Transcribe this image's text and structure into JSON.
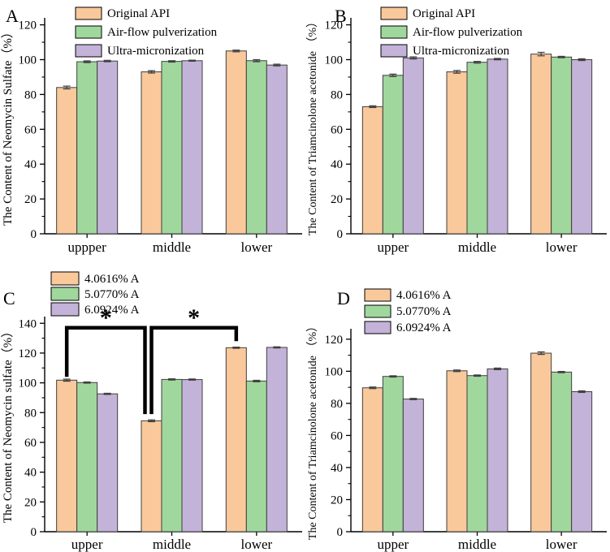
{
  "figure": {
    "panel_labels": [
      "A",
      "B",
      "C",
      "D"
    ],
    "colors": {
      "series_fills": [
        "#F9C89B",
        "#A0D79D",
        "#C3B3D8"
      ],
      "bar_edge": "#3f3f3f",
      "error_bar": "#3f3f3f",
      "axis": "#000000",
      "annotation": "#000000",
      "background": "#ffffff"
    }
  },
  "chart_data": [
    {
      "type": "bar",
      "panel_label": "A",
      "title": "",
      "xlabel": "",
      "ylabel": "The Content of Neomycin Sulfate（%）",
      "categories": [
        "uppper",
        "middle",
        "lower"
      ],
      "series": [
        {
          "name": "Original API",
          "values": [
            84.0,
            93.0,
            105.0
          ],
          "errors": [
            0.8,
            0.7,
            0.5
          ]
        },
        {
          "name": "Air-flow pulverization",
          "values": [
            98.8,
            99.0,
            99.4
          ],
          "errors": [
            0.5,
            0.4,
            0.6
          ]
        },
        {
          "name": "Ultra-micronization",
          "values": [
            99.2,
            99.4,
            96.9
          ],
          "errors": [
            0.4,
            0.3,
            0.5
          ]
        }
      ],
      "ylim": [
        0,
        124
      ],
      "yticks": [
        0,
        20,
        40,
        60,
        80,
        100,
        120
      ],
      "minor_tick_unit": 10,
      "grid": false,
      "legend_position": "top-left-inside",
      "annotations": []
    },
    {
      "type": "bar",
      "panel_label": "B",
      "title": "",
      "xlabel": "",
      "ylabel": "The Content of Triamcinolone acetonide （%）",
      "categories": [
        "upper",
        "middle",
        "lower"
      ],
      "series": [
        {
          "name": "Original API",
          "values": [
            73.0,
            93.0,
            103.2
          ],
          "errors": [
            0.5,
            0.8,
            1.0
          ]
        },
        {
          "name": "Air-flow pulverization",
          "values": [
            91.0,
            98.5,
            101.5
          ],
          "errors": [
            0.7,
            0.5,
            0.4
          ]
        },
        {
          "name": "Ultra-micronization",
          "values": [
            101.0,
            100.3,
            100.0
          ],
          "errors": [
            0.6,
            0.4,
            0.5
          ]
        }
      ],
      "ylim": [
        0,
        124
      ],
      "yticks": [
        0,
        20,
        40,
        60,
        80,
        100,
        120
      ],
      "minor_tick_unit": 10,
      "grid": false,
      "legend_position": "top-left-inside",
      "annotations": []
    },
    {
      "type": "bar",
      "panel_label": "C",
      "title": "",
      "xlabel": "",
      "ylabel": "The Content of Neomycin sulfate（%）",
      "categories": [
        "upper",
        "middle",
        "lower"
      ],
      "series": [
        {
          "name": "4.0616% A",
          "values": [
            101.8,
            74.5,
            123.6
          ],
          "errors": [
            0.7,
            0.6,
            0.4
          ]
        },
        {
          "name": "5.0770% A",
          "values": [
            100.2,
            102.3,
            101.2
          ],
          "errors": [
            0.4,
            0.4,
            0.5
          ]
        },
        {
          "name": "6.0924% A",
          "values": [
            92.6,
            102.2,
            123.8
          ],
          "errors": [
            0.4,
            0.4,
            0.4
          ]
        }
      ],
      "ylim": [
        0,
        144.5
      ],
      "yticks": [
        0,
        20,
        40,
        60,
        80,
        100,
        120,
        140
      ],
      "minor_tick_unit": 10,
      "grid": false,
      "legend_position": "top-left-inside",
      "annotations": [
        {
          "label": "*",
          "series": 0,
          "from_group": 0,
          "to_group": 1,
          "level": 137,
          "from_value": 104,
          "to_value": 79
        },
        {
          "label": "*",
          "series": 0,
          "from_group": 1,
          "to_group": 2,
          "level": 137,
          "from_value": 79,
          "to_value": 128
        }
      ]
    },
    {
      "type": "bar",
      "panel_label": "D",
      "title": "",
      "xlabel": "",
      "ylabel": "The Content of Triamcinolone acetonide （%）",
      "categories": [
        "upper",
        "middle",
        "lower"
      ],
      "series": [
        {
          "name": "4.0616% A",
          "values": [
            89.7,
            100.3,
            111.3
          ],
          "errors": [
            0.5,
            0.5,
            0.8
          ]
        },
        {
          "name": "5.0770% A",
          "values": [
            96.8,
            97.3,
            99.5
          ],
          "errors": [
            0.4,
            0.4,
            0.4
          ]
        },
        {
          "name": "6.0924% A",
          "values": [
            82.7,
            101.5,
            87.3
          ],
          "errors": [
            0.4,
            0.5,
            0.5
          ]
        }
      ],
      "ylim": [
        0,
        126.5
      ],
      "yticks": [
        0,
        20,
        40,
        60,
        80,
        100,
        120
      ],
      "minor_tick_unit": 10,
      "grid": false,
      "legend_position": "top-left-inside",
      "annotations": []
    }
  ]
}
